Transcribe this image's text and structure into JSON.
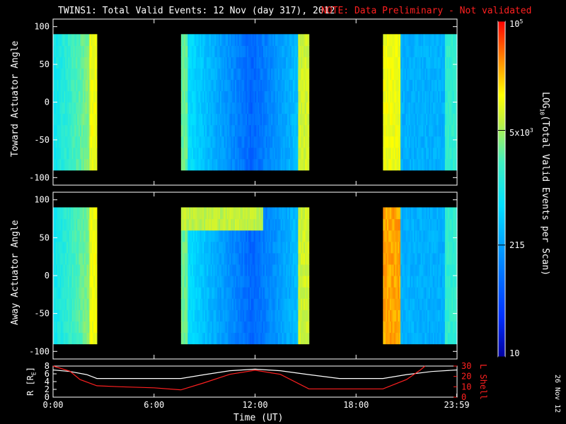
{
  "title": "TWINS1: Total Valid Events: 12 Nov (day 317), 2012",
  "note": "NOTE: Data Preliminary - Not validated",
  "date_stamp": "26 Nov 12",
  "colors": {
    "note": "#ff2020",
    "altitude_line": "#ffffff",
    "lshell_line": "#ff2020",
    "frame": "#ffffff"
  },
  "colorbar": {
    "label_prefix": "LOG",
    "label_sub": "10",
    "label_suffix": "(Total Valid Events per Scan)",
    "ticks": [
      {
        "value": 10,
        "label": "10"
      },
      {
        "value": 215,
        "label": "215"
      },
      {
        "value": 5000,
        "label_base": "5x10",
        "label_exp": "3"
      },
      {
        "value": 100000,
        "label_base": "10",
        "label_exp": "5"
      }
    ],
    "scale": "log",
    "colormap": "rainbow (blue-cyan-green-yellow-red)"
  },
  "chart_data": [
    {
      "type": "heatmap",
      "name": "toward",
      "ylabel": "Toward Actuator Angle",
      "ylim": [
        -110,
        110
      ],
      "yticks": [
        100,
        50,
        0,
        -50,
        -100
      ],
      "xlim": [
        0,
        24
      ],
      "data_y_range": [
        -90,
        90
      ],
      "data_intervals_hours": [
        [
          0.0,
          2.6
        ],
        [
          7.6,
          15.2
        ],
        [
          19.6,
          24.0
        ]
      ],
      "features": "higher counts (yellow) at edges of each interval; minimum (blue) near 11-13 UT"
    },
    {
      "type": "heatmap",
      "name": "away",
      "ylabel": "Away Actuator Angle",
      "ylim": [
        -110,
        110
      ],
      "yticks": [
        100,
        50,
        0,
        -50,
        -100
      ],
      "xlim": [
        0,
        24
      ],
      "data_y_range": [
        -90,
        90
      ],
      "data_intervals_hours": [
        [
          0.0,
          2.6
        ],
        [
          7.6,
          15.2
        ],
        [
          19.6,
          24.0
        ]
      ],
      "features": "yellow band near +75 deg during 7.6-12 UT; orange near 19.6-20.6 UT"
    },
    {
      "type": "line",
      "name": "orbit",
      "xlabel": "Time (UT)",
      "xticks": [
        "0:00",
        "6:00",
        "12:00",
        "18:00",
        "23:59"
      ],
      "xtick_hours": [
        0,
        6,
        12,
        18,
        23.98
      ],
      "left_axis": {
        "label_prefix": "R [R",
        "label_sub": "E",
        "label_suffix": "]",
        "ylim": [
          0,
          8
        ],
        "ticks": [
          0,
          2,
          4,
          6,
          8
        ]
      },
      "right_axis": {
        "label": "L Shell",
        "ylim": [
          0,
          30
        ],
        "ticks": [
          0,
          10,
          20,
          30
        ]
      },
      "series": [
        {
          "axis": "left",
          "x": [
            0,
            1,
            2,
            2.6,
            4,
            6,
            7.6,
            9,
            10.5,
            12,
            13.5,
            15.2,
            17,
            19,
            19.6,
            21,
            22.5,
            24
          ],
          "y": [
            7.0,
            6.6,
            5.8,
            4.8,
            4.8,
            4.8,
            4.8,
            5.8,
            6.8,
            7.2,
            6.8,
            5.8,
            4.8,
            4.8,
            4.8,
            5.8,
            6.6,
            7.0
          ]
        },
        {
          "axis": "right",
          "x": [
            0,
            1,
            1.6,
            2.6,
            4,
            6,
            7.6,
            9,
            10.5,
            12,
            13.5,
            15.2,
            17,
            19,
            19.6,
            21,
            21.8,
            22.1
          ],
          "y": [
            30,
            25,
            17,
            11,
            10,
            9,
            7,
            14,
            22,
            26,
            22,
            8,
            8,
            8,
            8,
            17,
            26,
            30
          ]
        }
      ]
    }
  ]
}
